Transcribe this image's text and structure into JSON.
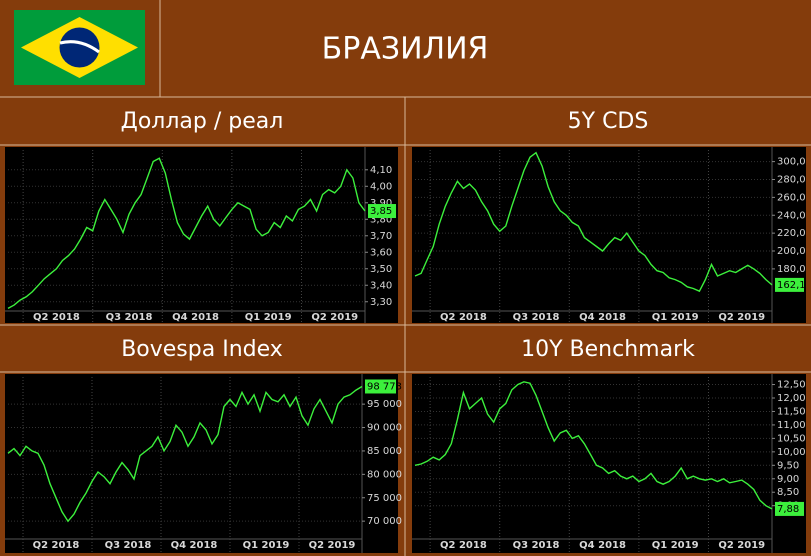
{
  "title": "БРАЗИЛИЯ",
  "chart_data": [
    {
      "type": "line",
      "title": "Доллар / реал",
      "color": "#3cf03c",
      "grid": true,
      "categories": [
        null,
        null,
        null,
        null,
        null,
        null,
        null,
        null,
        "Q2 2018",
        null,
        null,
        null,
        null,
        null,
        null,
        null,
        null,
        null,
        null,
        null,
        "Q3 2018",
        null,
        null,
        null,
        null,
        null,
        null,
        null,
        null,
        null,
        null,
        "Q4 2018",
        null,
        null,
        null,
        null,
        null,
        null,
        null,
        null,
        null,
        null,
        null,
        "Q1 2019",
        null,
        null,
        null,
        null,
        null,
        null,
        null,
        null,
        null,
        null,
        "Q2 2019",
        null,
        null,
        null,
        null,
        null
      ],
      "values": [
        3.26,
        3.28,
        3.31,
        3.33,
        3.36,
        3.4,
        3.44,
        3.47,
        3.5,
        3.55,
        3.58,
        3.62,
        3.68,
        3.75,
        3.73,
        3.85,
        3.92,
        3.86,
        3.8,
        3.72,
        3.83,
        3.9,
        3.95,
        4.05,
        4.15,
        4.17,
        4.08,
        3.92,
        3.78,
        3.71,
        3.68,
        3.75,
        3.82,
        3.88,
        3.8,
        3.76,
        3.81,
        3.86,
        3.9,
        3.88,
        3.86,
        3.74,
        3.7,
        3.72,
        3.78,
        3.75,
        3.82,
        3.79,
        3.86,
        3.88,
        3.92,
        3.85,
        3.95,
        3.98,
        3.96,
        4.0,
        4.1,
        4.05,
        3.9,
        3.85
      ],
      "value_labels": [
        null,
        null,
        null,
        null,
        null,
        null,
        null,
        null,
        null,
        null,
        null,
        null,
        null,
        null,
        null,
        null,
        null,
        null,
        null,
        null,
        null,
        null,
        null,
        null,
        null,
        null,
        null,
        null,
        null,
        null,
        null,
        null,
        null,
        null,
        null,
        null,
        null,
        null,
        null,
        null,
        null,
        null,
        null,
        null,
        null,
        null,
        null,
        null,
        null,
        null,
        null,
        null,
        null,
        null,
        null,
        null,
        null,
        null,
        null,
        "3,85"
      ],
      "ylim": [
        3.25,
        4.22
      ],
      "yticks": [
        {
          "value": 3.3,
          "label": "3,30"
        },
        {
          "value": 3.4,
          "label": "3,40"
        },
        {
          "value": 3.5,
          "label": "3,50"
        },
        {
          "value": 3.6,
          "label": "3,60"
        },
        {
          "value": 3.7,
          "label": "3,70"
        },
        {
          "value": 3.8,
          "label": "3,80"
        },
        {
          "value": 3.9,
          "label": "3,90"
        },
        {
          "value": 4.0,
          "label": "4,00"
        },
        {
          "value": 4.1,
          "label": "4,10"
        }
      ]
    },
    {
      "type": "line",
      "title": "5Y CDS",
      "color": "#3cf03c",
      "grid": true,
      "categories": [
        null,
        null,
        null,
        null,
        null,
        null,
        null,
        null,
        "Q2 2018",
        null,
        null,
        null,
        null,
        null,
        null,
        null,
        null,
        null,
        null,
        null,
        "Q3 2018",
        null,
        null,
        null,
        null,
        null,
        null,
        null,
        null,
        null,
        null,
        "Q4 2018",
        null,
        null,
        null,
        null,
        null,
        null,
        null,
        null,
        null,
        null,
        null,
        "Q1 2019",
        null,
        null,
        null,
        null,
        null,
        null,
        null,
        null,
        null,
        null,
        "Q2 2019",
        null,
        null,
        null,
        null,
        null
      ],
      "values": [
        172,
        175,
        190,
        205,
        230,
        250,
        265,
        278,
        270,
        275,
        268,
        255,
        245,
        230,
        222,
        228,
        250,
        270,
        290,
        305,
        310,
        295,
        272,
        255,
        245,
        240,
        232,
        228,
        215,
        210,
        205,
        200,
        208,
        215,
        212,
        220,
        210,
        200,
        195,
        185,
        178,
        176,
        170,
        168,
        165,
        160,
        158,
        155,
        168,
        185,
        172,
        175,
        178,
        176,
        180,
        184,
        180,
        175,
        168,
        162.1
      ],
      "value_labels": [
        null,
        null,
        null,
        null,
        null,
        null,
        null,
        null,
        null,
        null,
        null,
        null,
        null,
        null,
        null,
        null,
        null,
        null,
        null,
        null,
        null,
        null,
        null,
        null,
        null,
        null,
        null,
        null,
        null,
        null,
        null,
        null,
        null,
        null,
        null,
        null,
        null,
        null,
        null,
        null,
        null,
        null,
        null,
        null,
        null,
        null,
        null,
        null,
        null,
        null,
        null,
        null,
        null,
        null,
        null,
        null,
        null,
        null,
        null,
        "162,1"
      ],
      "ylim": [
        134,
        313
      ],
      "yticks": [
        {
          "value": 180,
          "label": "180,0"
        },
        {
          "value": 200,
          "label": "200,0"
        },
        {
          "value": 220,
          "label": "220,0"
        },
        {
          "value": 240,
          "label": "240,0"
        },
        {
          "value": 260,
          "label": "260,0"
        },
        {
          "value": 280,
          "label": "280,0"
        },
        {
          "value": 300,
          "label": "300,0"
        }
      ]
    },
    {
      "type": "line",
      "title": "Bovespa Index",
      "color": "#3cf03c",
      "grid": true,
      "categories": [
        null,
        null,
        null,
        null,
        null,
        null,
        null,
        null,
        "Q2 2018",
        null,
        null,
        null,
        null,
        null,
        null,
        null,
        null,
        null,
        null,
        null,
        "Q3 2018",
        null,
        null,
        null,
        null,
        null,
        null,
        null,
        null,
        null,
        null,
        "Q4 2018",
        null,
        null,
        null,
        null,
        null,
        null,
        null,
        null,
        null,
        null,
        null,
        "Q1 2019",
        null,
        null,
        null,
        null,
        null,
        null,
        null,
        null,
        null,
        null,
        "Q2 2019",
        null,
        null,
        null,
        null,
        null
      ],
      "values": [
        84500,
        85500,
        84000,
        86000,
        85000,
        84500,
        82000,
        78000,
        75000,
        72000,
        70000,
        71500,
        74000,
        76000,
        78500,
        80500,
        79500,
        78000,
        80500,
        82500,
        81000,
        79000,
        84000,
        85000,
        86000,
        88000,
        85000,
        87000,
        90500,
        89000,
        86000,
        88000,
        91000,
        89500,
        86500,
        88500,
        94500,
        96000,
        94500,
        97500,
        95000,
        97000,
        93500,
        97500,
        96000,
        95500,
        97000,
        94500,
        96500,
        92500,
        90500,
        94000,
        96000,
        93500,
        91000,
        95000,
        96500,
        97000,
        98000,
        98773
      ],
      "value_labels": [
        null,
        null,
        null,
        null,
        null,
        null,
        null,
        null,
        null,
        null,
        null,
        null,
        null,
        null,
        null,
        null,
        null,
        null,
        null,
        null,
        null,
        null,
        null,
        null,
        null,
        null,
        null,
        null,
        null,
        null,
        null,
        null,
        null,
        null,
        null,
        null,
        null,
        null,
        null,
        null,
        null,
        null,
        null,
        null,
        null,
        null,
        null,
        null,
        null,
        null,
        null,
        null,
        null,
        null,
        null,
        null,
        null,
        null,
        null,
        "98 773"
      ],
      "ylim": [
        66400,
        100800
      ],
      "yticks": [
        {
          "value": 70000,
          "label": "70 000"
        },
        {
          "value": 75000,
          "label": "75 000"
        },
        {
          "value": 80000,
          "label": "80 000"
        },
        {
          "value": 85000,
          "label": "85 000"
        },
        {
          "value": 90000,
          "label": "90 000"
        },
        {
          "value": 95000,
          "label": "95 000"
        }
      ]
    },
    {
      "type": "line",
      "title": "10Y Benchmark",
      "color": "#3cf03c",
      "grid": true,
      "categories": [
        null,
        null,
        null,
        null,
        null,
        null,
        null,
        null,
        "Q2 2018",
        null,
        null,
        null,
        null,
        null,
        null,
        null,
        null,
        null,
        null,
        null,
        "Q3 2018",
        null,
        null,
        null,
        null,
        null,
        null,
        null,
        null,
        null,
        null,
        "Q4 2018",
        null,
        null,
        null,
        null,
        null,
        null,
        null,
        null,
        null,
        null,
        null,
        "Q1 2019",
        null,
        null,
        null,
        null,
        null,
        null,
        null,
        null,
        null,
        null,
        "Q2 2019",
        null,
        null,
        null,
        null,
        null
      ],
      "values": [
        9.5,
        9.55,
        9.65,
        9.8,
        9.7,
        9.9,
        10.3,
        11.2,
        12.2,
        11.6,
        11.8,
        12.0,
        11.4,
        11.1,
        11.6,
        11.8,
        12.3,
        12.5,
        12.6,
        12.55,
        12.1,
        11.5,
        10.9,
        10.4,
        10.7,
        10.8,
        10.5,
        10.6,
        10.3,
        9.9,
        9.5,
        9.4,
        9.2,
        9.3,
        9.1,
        9.0,
        9.1,
        8.9,
        9.0,
        9.2,
        8.9,
        8.8,
        8.9,
        9.1,
        9.4,
        9.0,
        9.1,
        9.0,
        8.95,
        9.0,
        8.9,
        9.0,
        8.85,
        8.9,
        8.95,
        8.8,
        8.6,
        8.2,
        8.0,
        7.88
      ],
      "value_labels": [
        null,
        null,
        null,
        null,
        null,
        null,
        null,
        null,
        null,
        null,
        null,
        null,
        null,
        null,
        null,
        null,
        null,
        null,
        null,
        null,
        null,
        null,
        null,
        null,
        null,
        null,
        null,
        null,
        null,
        null,
        null,
        null,
        null,
        null,
        null,
        null,
        null,
        null,
        null,
        null,
        null,
        null,
        null,
        null,
        null,
        null,
        null,
        null,
        null,
        null,
        null,
        null,
        null,
        null,
        null,
        null,
        null,
        null,
        null,
        "7,88"
      ],
      "ylim": [
        6.8,
        12.78
      ],
      "yticks": [
        {
          "value": 8.0,
          "label": "8,00"
        },
        {
          "value": 8.5,
          "label": "8,50"
        },
        {
          "value": 9.0,
          "label": "9,00"
        },
        {
          "value": 9.5,
          "label": "9,50"
        },
        {
          "value": 10.0,
          "label": "10,00"
        },
        {
          "value": 10.5,
          "label": "10,50"
        },
        {
          "value": 11.0,
          "label": "11,00"
        },
        {
          "value": 11.5,
          "label": "11,50"
        },
        {
          "value": 12.0,
          "label": "12,00"
        },
        {
          "value": 12.5,
          "label": "12,50"
        }
      ]
    }
  ]
}
